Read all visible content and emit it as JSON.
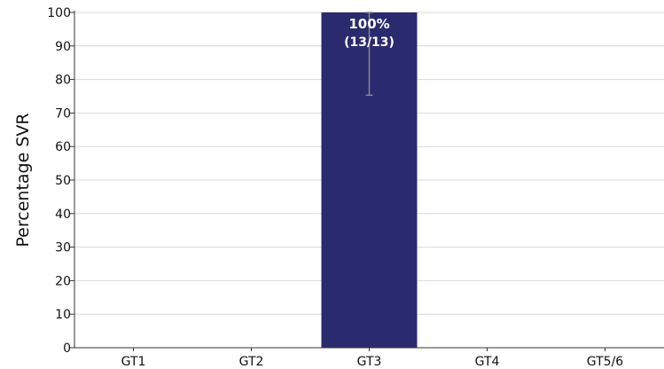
{
  "chart_data": {
    "type": "bar",
    "categories": [
      "GT1",
      "GT2",
      "GT3",
      "GT4",
      "GT5/6"
    ],
    "values": [
      null,
      null,
      100,
      null,
      null
    ],
    "data_labels": [
      null,
      null,
      "100%",
      null,
      null
    ],
    "data_sublabels": [
      null,
      null,
      "(13/13)",
      null,
      null
    ],
    "error_bars": [
      null,
      null,
      {
        "lower": 75.3,
        "upper": 100
      },
      null,
      null
    ],
    "ylabel": "Percentage SVR",
    "xlabel": "",
    "ylim": [
      0,
      100
    ],
    "yticks": [
      0,
      10,
      20,
      30,
      40,
      50,
      60,
      70,
      80,
      90,
      100
    ],
    "grid": "horizontal",
    "colors": {
      "bar": "#2a2a6e",
      "grid": "#d9d9d9",
      "axis": "#333333",
      "error_bar": "#888888"
    }
  }
}
